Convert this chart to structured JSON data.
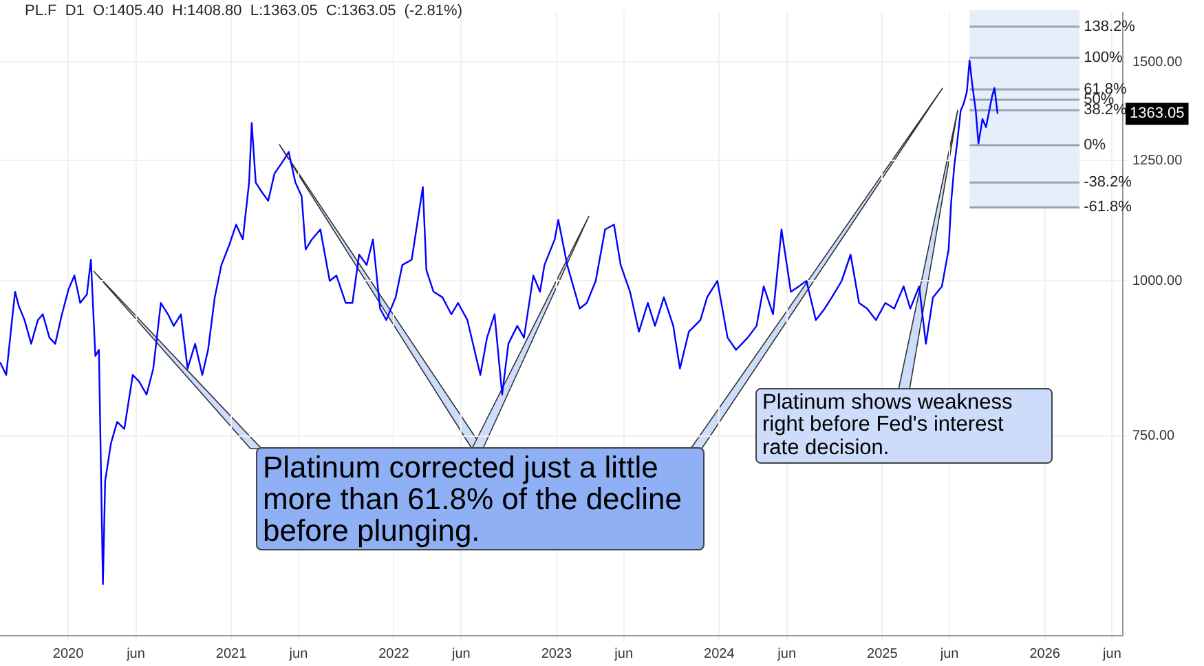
{
  "chart_data": {
    "type": "line",
    "title": "PL.F  D1  O:1405.40  H:1408.80  L:1363.05  C:1363.05  (-2.81%)",
    "x": [
      "2019-08-01",
      "2019-08-15",
      "2019-08-28",
      "2019-09-04",
      "2019-09-12",
      "2019-09-25",
      "2019-10-10",
      "2019-10-25",
      "2019-11-05",
      "2019-11-20",
      "2019-12-03",
      "2019-12-18",
      "2020-01-02",
      "2020-01-15",
      "2020-01-28",
      "2020-02-12",
      "2020-02-21",
      "2020-03-02",
      "2020-03-10",
      "2020-03-19",
      "2020-03-24",
      "2020-04-06",
      "2020-04-20",
      "2020-05-06",
      "2020-05-25",
      "2020-06-08",
      "2020-06-25",
      "2020-07-10",
      "2020-07-27",
      "2020-08-12",
      "2020-08-25",
      "2020-09-10",
      "2020-09-25",
      "2020-10-12",
      "2020-10-28",
      "2020-11-10",
      "2020-11-25",
      "2020-12-10",
      "2020-12-28",
      "2021-01-12",
      "2021-01-27",
      "2021-02-10",
      "2021-02-16",
      "2021-02-25",
      "2021-03-10",
      "2021-03-25",
      "2021-04-08",
      "2021-04-28",
      "2021-05-10",
      "2021-05-25",
      "2021-06-08",
      "2021-06-17",
      "2021-07-01",
      "2021-07-20",
      "2021-08-10",
      "2021-08-25",
      "2021-09-15",
      "2021-09-30",
      "2021-10-15",
      "2021-11-01",
      "2021-11-15",
      "2021-12-01",
      "2021-12-15",
      "2022-01-05",
      "2022-01-20",
      "2022-02-10",
      "2022-03-07",
      "2022-03-15",
      "2022-03-31",
      "2022-04-20",
      "2022-05-10",
      "2022-05-25",
      "2022-06-15",
      "2022-07-14",
      "2022-07-29",
      "2022-08-15",
      "2022-09-01",
      "2022-09-15",
      "2022-10-05",
      "2022-10-20",
      "2022-11-10",
      "2022-11-25",
      "2022-12-05",
      "2022-12-28",
      "2023-01-05",
      "2023-01-25",
      "2023-02-22",
      "2023-03-10",
      "2023-03-30",
      "2023-04-20",
      "2023-05-10",
      "2023-05-25",
      "2023-06-15",
      "2023-07-05",
      "2023-07-25",
      "2023-08-10",
      "2023-08-30",
      "2023-09-20",
      "2023-10-05",
      "2023-10-25",
      "2023-11-20",
      "2023-12-05",
      "2023-12-28",
      "2024-01-20",
      "2024-02-08",
      "2024-03-05",
      "2024-03-25",
      "2024-04-10",
      "2024-05-01",
      "2024-05-20",
      "2024-06-10",
      "2024-06-28",
      "2024-07-15",
      "2024-08-05",
      "2024-08-25",
      "2024-09-10",
      "2024-10-02",
      "2024-10-22",
      "2024-11-10",
      "2024-11-28",
      "2024-12-18",
      "2025-01-08",
      "2025-01-28",
      "2025-02-18",
      "2025-03-05",
      "2025-03-25",
      "2025-04-09",
      "2025-04-25",
      "2025-05-15",
      "2025-05-30",
      "2025-06-05",
      "2025-06-12",
      "2025-06-18",
      "2025-06-26",
      "2025-07-03",
      "2025-07-10",
      "2025-07-16",
      "2025-07-22",
      "2025-07-30",
      "2025-08-05",
      "2025-08-14",
      "2025-08-22",
      "2025-08-29",
      "2025-09-05",
      "2025-09-10",
      "2025-09-17"
    ],
    "series": [
      {
        "color": "#0000ff",
        "values": [
          860,
          840,
          930,
          980,
          955,
          930,
          890,
          930,
          940,
          900,
          890,
          940,
          985,
          1010,
          960,
          975,
          1040,
          870,
          880,
          570,
          690,
          740,
          770,
          760,
          840,
          830,
          810,
          850,
          960,
          940,
          920,
          940,
          850,
          890,
          840,
          880,
          970,
          1030,
          1070,
          1110,
          1080,
          1200,
          1340,
          1200,
          1180,
          1160,
          1220,
          1250,
          1270,
          1200,
          1170,
          1060,
          1080,
          1100,
          1000,
          1010,
          960,
          960,
          1050,
          1030,
          1080,
          950,
          930,
          970,
          1030,
          1040,
          1190,
          1020,
          980,
          970,
          940,
          960,
          930,
          840,
          900,
          940,
          810,
          890,
          920,
          900,
          1010,
          980,
          1030,
          1080,
          1120,
          1030,
          950,
          960,
          1000,
          1100,
          1110,
          1030,
          980,
          910,
          960,
          920,
          970,
          920,
          850,
          910,
          930,
          970,
          1000,
          900,
          880,
          900,
          920,
          990,
          940,
          1100,
          980,
          990,
          1000,
          930,
          950,
          970,
          1000,
          1050,
          960,
          950,
          930,
          960,
          950,
          990,
          950,
          990,
          890,
          970,
          990,
          1060,
          1160,
          1240,
          1290,
          1370,
          1390,
          1420,
          1505,
          1440,
          1370,
          1290,
          1350,
          1330,
          1370,
          1410,
          1430,
          1363.05
        ]
      }
    ],
    "log": "y",
    "ylim": [
      518,
      1645
    ],
    "yticks": [
      {
        "value": 750,
        "label": "750.00"
      },
      {
        "value": 1000,
        "label": "1000.00"
      },
      {
        "value": 1250,
        "label": "1250.00"
      },
      {
        "value": 1500,
        "label": "1500.00"
      }
    ],
    "xlim": [
      "2019-08-01",
      "2026-06-25"
    ],
    "xticks": [
      {
        "value": "2020-01-01",
        "label": "2020"
      },
      {
        "value": "2020-06-01",
        "label": "jun"
      },
      {
        "value": "2021-01-01",
        "label": "2021"
      },
      {
        "value": "2021-06-01",
        "label": "jun"
      },
      {
        "value": "2022-01-01",
        "label": "2022"
      },
      {
        "value": "2022-06-01",
        "label": "jun"
      },
      {
        "value": "2023-01-01",
        "label": "2023"
      },
      {
        "value": "2023-06-01",
        "label": "jun"
      },
      {
        "value": "2024-01-01",
        "label": "2024"
      },
      {
        "value": "2024-06-01",
        "label": "jun"
      },
      {
        "value": "2025-01-01",
        "label": "2025"
      },
      {
        "value": "2025-06-01",
        "label": "jun"
      },
      {
        "value": "2026-01-01",
        "label": "2026"
      },
      {
        "value": "2026-06-01",
        "label": "jun"
      }
    ],
    "grid": true,
    "legend": false,
    "marker": "none",
    "bands": [
      {
        "axis": "x",
        "from": "2025-07-16",
        "to": "2026-03-20",
        "color": "#e6eefc"
      }
    ],
    "ref_lines": [
      {
        "axis": "y",
        "value": 1602
      },
      {
        "axis": "y",
        "value": 1512
      },
      {
        "axis": "y",
        "value": 1426
      },
      {
        "axis": "y",
        "value": 1399
      },
      {
        "axis": "y",
        "value": 1372
      },
      {
        "axis": "y",
        "value": 1286
      },
      {
        "axis": "y",
        "value": 1200
      },
      {
        "axis": "y",
        "value": 1146
      }
    ],
    "annotations": [
      "Platinum corrected just a little more than 61.8% of the decline before plunging.",
      "Platinum shows weakness right before Fed's interest rate decision.",
      "1363.05",
      {
        "text": "138.2%",
        "x": "2026-03-20",
        "y": 1602
      },
      {
        "text": "100%",
        "x": "2026-03-20",
        "y": 1512
      },
      {
        "text": "61.8%",
        "x": "2026-03-20",
        "y": 1426
      },
      {
        "text": "50%",
        "x": "2026-03-20",
        "y": 1399
      },
      {
        "text": "38.2%",
        "x": "2026-03-20",
        "y": 1372
      },
      {
        "text": "0%",
        "x": "2026-03-20",
        "y": 1286
      },
      {
        "text": "-38.2%",
        "x": "2026-03-20",
        "y": 1200
      },
      {
        "text": "-61.8%",
        "x": "2026-03-20",
        "y": 1146
      }
    ]
  }
}
